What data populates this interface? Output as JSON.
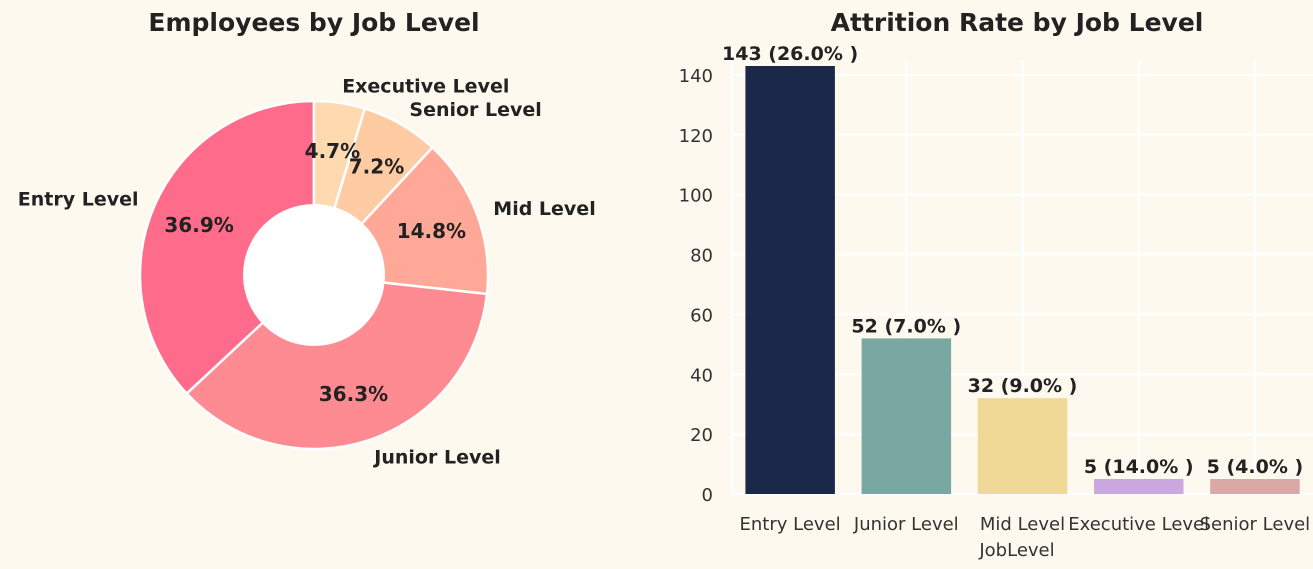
{
  "colors": {
    "background": "#fef9ee",
    "grid": "#ffffff",
    "text": "#222222"
  },
  "chart_data": [
    {
      "type": "pie",
      "title": "Employees by Job Level",
      "donut": true,
      "slices": [
        {
          "label": "Entry Level",
          "pct": 36.9,
          "display": "36.9%",
          "color": "#ff6b8a"
        },
        {
          "label": "Junior Level",
          "pct": 36.3,
          "display": "36.3%",
          "color": "#ff8b92"
        },
        {
          "label": "Mid Level",
          "pct": 14.8,
          "display": "14.8%",
          "color": "#ffa898"
        },
        {
          "label": "Senior Level",
          "pct": 7.2,
          "display": "7.2%",
          "color": "#ffcba2"
        },
        {
          "label": "Executive Level",
          "pct": 4.7,
          "display": "4.7%",
          "color": "#ffd9b0"
        }
      ]
    },
    {
      "type": "bar",
      "title": "Attrition Rate by Job Level",
      "xlabel": "JobLevel",
      "ylabel": "",
      "categories": [
        "Entry Level",
        "Junior Level",
        "Mid Level",
        "Executive Level",
        "Senior Level"
      ],
      "values": [
        143,
        52,
        32,
        5,
        5
      ],
      "bar_labels": [
        "143 (26.0% )",
        "52 (7.0% )",
        "32 (9.0% )",
        "5 (14.0% )",
        "5 (4.0% )"
      ],
      "colors": [
        "#1b2849",
        "#79a8a2",
        "#f0d897",
        "#cba8df",
        "#dba8a8"
      ],
      "ylim": [
        0,
        145
      ],
      "yticks": [
        0,
        20,
        40,
        60,
        80,
        100,
        120,
        140
      ],
      "grid": true
    }
  ]
}
